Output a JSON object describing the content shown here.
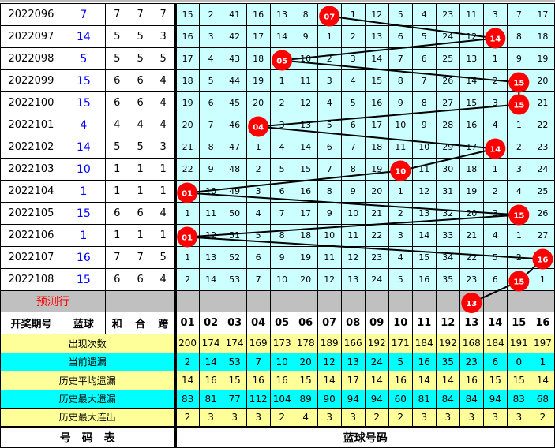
{
  "colors": {
    "ball": "#ff0000",
    "grid": "#ccffff",
    "blue_text": "#0000ff",
    "predict_bg": "#c0c0c0",
    "stat_yellow": "#ffff99",
    "stat_cyan": "#00ffff"
  },
  "rows": [
    {
      "period": "2022096",
      "blue": "7",
      "he": "7",
      "hesum": "7",
      "kua": "7",
      "cells": [
        "15",
        "2",
        "41",
        "16",
        "13",
        "8",
        "07",
        "1",
        "12",
        "5",
        "4",
        "23",
        "11",
        "3",
        "7",
        "17"
      ],
      "hit": 7
    },
    {
      "period": "2022097",
      "blue": "14",
      "he": "5",
      "hesum": "5",
      "kua": "3",
      "cells": [
        "16",
        "3",
        "42",
        "17",
        "14",
        "9",
        "1",
        "2",
        "13",
        "6",
        "5",
        "24",
        "12",
        "14",
        "8",
        "18"
      ],
      "hit": 14
    },
    {
      "period": "2022098",
      "blue": "5",
      "he": "5",
      "hesum": "5",
      "kua": "5",
      "cells": [
        "17",
        "4",
        "43",
        "18",
        "05",
        "10",
        "2",
        "3",
        "14",
        "7",
        "6",
        "25",
        "13",
        "1",
        "9",
        "19"
      ],
      "hit": 5
    },
    {
      "period": "2022099",
      "blue": "15",
      "he": "6",
      "hesum": "6",
      "kua": "4",
      "cells": [
        "18",
        "5",
        "44",
        "19",
        "1",
        "11",
        "3",
        "4",
        "15",
        "8",
        "7",
        "26",
        "14",
        "2",
        "15",
        "20"
      ],
      "hit": 15
    },
    {
      "period": "2022100",
      "blue": "15",
      "he": "6",
      "hesum": "6",
      "kua": "4",
      "cells": [
        "19",
        "6",
        "45",
        "20",
        "2",
        "12",
        "4",
        "5",
        "16",
        "9",
        "8",
        "27",
        "15",
        "3",
        "15",
        "21"
      ],
      "hit": 15
    },
    {
      "period": "2022101",
      "blue": "4",
      "he": "4",
      "hesum": "4",
      "kua": "4",
      "cells": [
        "20",
        "7",
        "46",
        "04",
        "3",
        "13",
        "5",
        "6",
        "17",
        "10",
        "9",
        "28",
        "16",
        "4",
        "1",
        "22"
      ],
      "hit": 4
    },
    {
      "period": "2022102",
      "blue": "14",
      "he": "5",
      "hesum": "5",
      "kua": "3",
      "cells": [
        "21",
        "8",
        "47",
        "1",
        "4",
        "14",
        "6",
        "7",
        "18",
        "11",
        "10",
        "29",
        "17",
        "14",
        "2",
        "23"
      ],
      "hit": 14
    },
    {
      "period": "2022103",
      "blue": "10",
      "he": "1",
      "hesum": "1",
      "kua": "1",
      "cells": [
        "22",
        "9",
        "48",
        "2",
        "5",
        "15",
        "7",
        "8",
        "19",
        "10",
        "11",
        "30",
        "18",
        "1",
        "3",
        "24"
      ],
      "hit": 10
    },
    {
      "period": "2022104",
      "blue": "1",
      "he": "1",
      "hesum": "1",
      "kua": "1",
      "cells": [
        "01",
        "10",
        "49",
        "3",
        "6",
        "16",
        "8",
        "9",
        "20",
        "1",
        "12",
        "31",
        "19",
        "2",
        "4",
        "25"
      ],
      "hit": 1
    },
    {
      "period": "2022105",
      "blue": "15",
      "he": "6",
      "hesum": "6",
      "kua": "4",
      "cells": [
        "1",
        "11",
        "50",
        "4",
        "7",
        "17",
        "9",
        "10",
        "21",
        "2",
        "13",
        "32",
        "20",
        "3",
        "15",
        "26"
      ],
      "hit": 15
    },
    {
      "period": "2022106",
      "blue": "1",
      "he": "1",
      "hesum": "1",
      "kua": "1",
      "cells": [
        "01",
        "12",
        "51",
        "5",
        "8",
        "18",
        "10",
        "11",
        "22",
        "3",
        "14",
        "33",
        "21",
        "4",
        "1",
        "27"
      ],
      "hit": 1
    },
    {
      "period": "2022107",
      "blue": "16",
      "he": "7",
      "hesum": "7",
      "kua": "5",
      "cells": [
        "1",
        "13",
        "52",
        "6",
        "9",
        "19",
        "11",
        "12",
        "23",
        "4",
        "15",
        "34",
        "22",
        "5",
        "2",
        "16"
      ],
      "hit": 16
    },
    {
      "period": "2022108",
      "blue": "15",
      "he": "6",
      "hesum": "6",
      "kua": "4",
      "cells": [
        "2",
        "14",
        "53",
        "7",
        "10",
        "20",
        "12",
        "13",
        "24",
        "5",
        "16",
        "35",
        "23",
        "6",
        "15",
        "1"
      ],
      "hit": 15
    }
  ],
  "predict": {
    "label": "预测行",
    "number": "13",
    "hit": 13
  },
  "header": {
    "period": "开奖期号",
    "blue": "蓝球",
    "he": "和",
    "hesum": "合",
    "kua": "跨",
    "numbers": [
      "01",
      "02",
      "03",
      "04",
      "05",
      "06",
      "07",
      "08",
      "09",
      "10",
      "11",
      "12",
      "13",
      "14",
      "15",
      "16"
    ]
  },
  "stats": [
    {
      "label": "出现次数",
      "style": "y",
      "values": [
        "200",
        "174",
        "174",
        "169",
        "173",
        "178",
        "189",
        "166",
        "192",
        "171",
        "184",
        "192",
        "168",
        "184",
        "191",
        "197"
      ]
    },
    {
      "label": "当前遗漏",
      "style": "c",
      "values": [
        "2",
        "14",
        "53",
        "7",
        "10",
        "20",
        "12",
        "13",
        "24",
        "5",
        "16",
        "35",
        "23",
        "6",
        "0",
        "1"
      ]
    },
    {
      "label": "历史平均遗漏",
      "style": "y",
      "values": [
        "14",
        "16",
        "15",
        "16",
        "16",
        "15",
        "14",
        "17",
        "14",
        "16",
        "14",
        "14",
        "16",
        "15",
        "15",
        "14"
      ]
    },
    {
      "label": "历史最大遗漏",
      "style": "c",
      "values": [
        "83",
        "81",
        "77",
        "112",
        "104",
        "89",
        "90",
        "94",
        "94",
        "60",
        "81",
        "84",
        "84",
        "94",
        "83",
        "68"
      ]
    },
    {
      "label": "历史最大连出",
      "style": "y",
      "values": [
        "2",
        "3",
        "3",
        "3",
        "2",
        "4",
        "3",
        "3",
        "2",
        "2",
        "3",
        "3",
        "3",
        "3",
        "3",
        "2"
      ]
    }
  ],
  "footer": {
    "left": "号　码　表",
    "right": "蓝球号码"
  }
}
